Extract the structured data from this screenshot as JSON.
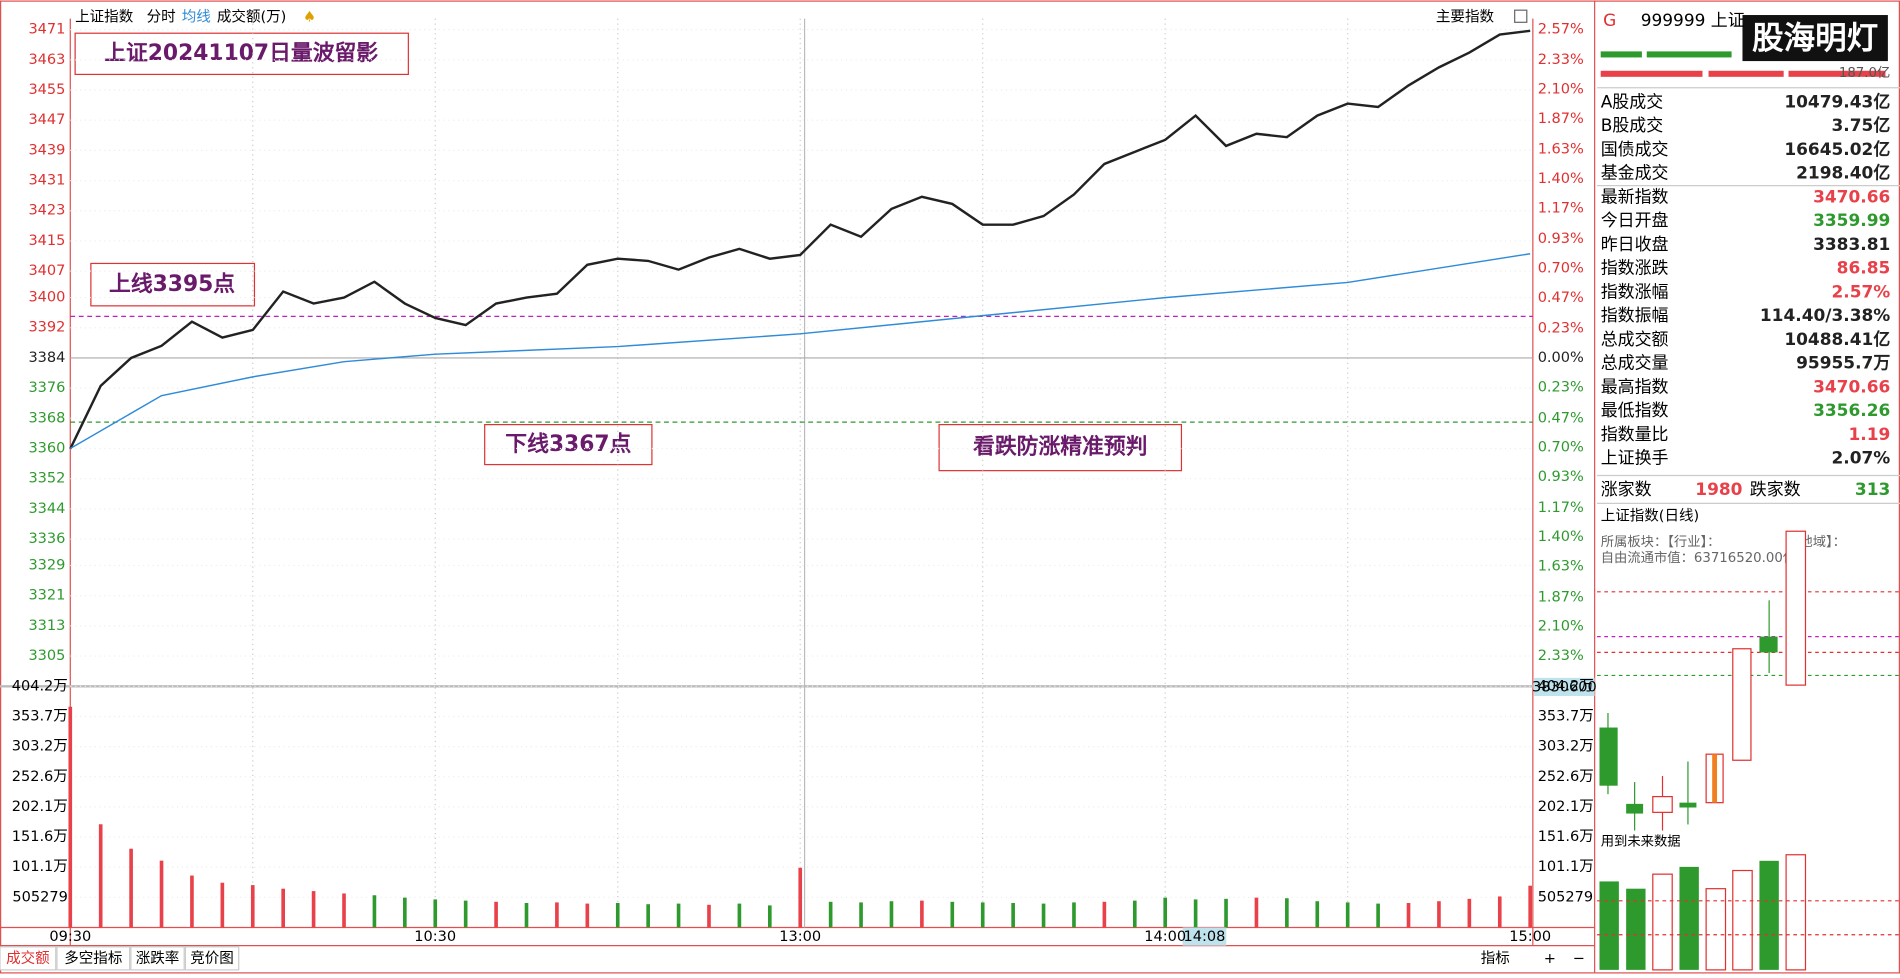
{
  "header": {
    "mode": "分时",
    "volume_label": "成交额(万)",
    "index_menu": "主要指数"
  },
  "cursor": {
    "time": "14:08",
    "volume": "3830600"
  },
  "tabs": [
    "成交额",
    "多空指标",
    "涨跌率",
    "竞价图"
  ],
  "toolbar": [
    "指标",
    "+",
    "−"
  ],
  "watermark": "股海明灯",
  "quote": {
    "flag": "G",
    "code": "999999 上证",
    "amount": "187.0亿",
    "rows": [
      {
        "label": "A股成交",
        "value": "10479.43亿",
        "color": "#222"
      },
      {
        "label": "B股成交",
        "value": "3.75亿",
        "color": "#222"
      },
      {
        "label": "国债成交",
        "value": "16645.02亿",
        "color": "#222"
      },
      {
        "label": "基金成交",
        "value": "2198.40亿",
        "color": "#222"
      },
      {
        "label": "最新指数",
        "value": "3470.66",
        "color": "#e8414a"
      },
      {
        "label": "今日开盘",
        "value": "3359.99",
        "color": "#2e9a2e"
      },
      {
        "label": "昨日收盘",
        "value": "3383.81",
        "color": "#222"
      },
      {
        "label": "指数涨跌",
        "value": "86.85",
        "color": "#e8414a"
      },
      {
        "label": "指数涨幅",
        "value": "2.57%",
        "color": "#e8414a"
      },
      {
        "label": "指数振幅",
        "value": "114.40/3.38%",
        "color": "#222"
      },
      {
        "label": "总成交额",
        "value": "10488.41亿",
        "color": "#222"
      },
      {
        "label": "总成交量",
        "value": "95955.7万",
        "color": "#222"
      },
      {
        "label": "最高指数",
        "value": "3470.66",
        "color": "#e8414a"
      },
      {
        "label": "最低指数",
        "value": "3356.26",
        "color": "#2e9a2e"
      },
      {
        "label": "指数量比",
        "value": "1.19",
        "color": "#e8414a"
      },
      {
        "label": "上证换手",
        "value": "2.07%",
        "color": "#222"
      }
    ],
    "up_label": "涨家数",
    "up": "1980",
    "down_label": "跌家数",
    "down": "313"
  },
  "daily": {
    "title": "上证指数(日线)",
    "sector": "所属板块：【行业】：",
    "region": "【地域】：",
    "float_cap": "自由流通市值：63716520.00亿",
    "note": "用到未来数据"
  },
  "chart_data": [
    {
      "type": "line",
      "ylim": [
        3297.3,
        3473.9
      ],
      "y2lim": [
        -2.557,
        2.655
      ],
      "yticks": [
        3471,
        3463,
        3455,
        3447,
        3439,
        3431,
        3423,
        3415,
        3407,
        3400,
        3392,
        3384,
        3376,
        3368,
        3360,
        3352,
        3344,
        3336,
        3329,
        3321,
        3313,
        3305
      ],
      "y2ticks": [
        {
          "value": 2.57,
          "label": "2.57%"
        },
        {
          "value": 2.33,
          "label": "2.33%"
        },
        {
          "value": 2.1,
          "label": "2.10%"
        },
        {
          "value": 1.87,
          "label": "1.87%"
        },
        {
          "value": 1.63,
          "label": "1.63%"
        },
        {
          "value": 1.4,
          "label": "1.40%"
        },
        {
          "value": 1.17,
          "label": "1.17%"
        },
        {
          "value": 0.93,
          "label": "0.93%"
        },
        {
          "value": 0.7,
          "label": "0.70%"
        },
        {
          "value": 0.47,
          "label": "0.47%"
        },
        {
          "value": 0.23,
          "label": "0.23%"
        },
        {
          "value": 0,
          "label": "0.00%"
        },
        {
          "value": -0.23,
          "label": "0.23%"
        },
        {
          "value": -0.47,
          "label": "0.47%"
        },
        {
          "value": -0.7,
          "label": "0.70%"
        },
        {
          "value": -0.93,
          "label": "0.93%"
        },
        {
          "value": -1.17,
          "label": "1.17%"
        },
        {
          "value": -1.4,
          "label": "1.40%"
        },
        {
          "value": -1.63,
          "label": "1.63%"
        },
        {
          "value": -1.87,
          "label": "1.87%"
        },
        {
          "value": -2.1,
          "label": "2.10%"
        },
        {
          "value": -2.33,
          "label": "2.33%"
        }
      ],
      "xticks": [
        "09:30",
        "10:30",
        "13:00",
        "14:00",
        "15:00"
      ],
      "series": [
        {
          "name": "上证指数",
          "color": "#222",
          "x": [
            "09:30",
            "09:35",
            "09:40",
            "09:45",
            "09:50",
            "09:55",
            "10:00",
            "10:05",
            "10:10",
            "10:15",
            "10:20",
            "10:25",
            "10:30",
            "10:35",
            "10:40",
            "10:45",
            "10:50",
            "10:55",
            "11:00",
            "11:05",
            "11:10",
            "11:15",
            "11:20",
            "11:25",
            "13:00",
            "13:05",
            "13:10",
            "13:15",
            "13:20",
            "13:25",
            "13:30",
            "13:35",
            "13:40",
            "13:45",
            "13:50",
            "13:55",
            "14:00",
            "14:05",
            "14:10",
            "14:15",
            "14:20",
            "14:25",
            "14:30",
            "14:35",
            "14:40",
            "14:45",
            "14:50",
            "14:55",
            "15:00"
          ],
          "values": [
            3359.9,
            3376.6,
            3384.0,
            3387.2,
            3393.6,
            3389.4,
            3391.4,
            3401.6,
            3398.4,
            3400.0,
            3404.2,
            3398.4,
            3394.6,
            3392.7,
            3398.4,
            3400.0,
            3401.0,
            3408.7,
            3410.3,
            3409.7,
            3407.4,
            3410.6,
            3412.9,
            3410.3,
            3411.3,
            3419.3,
            3416.1,
            3423.5,
            3426.7,
            3424.8,
            3419.3,
            3419.3,
            3421.6,
            3427.3,
            3435.4,
            3438.6,
            3441.8,
            3448.2,
            3440.2,
            3443.4,
            3442.5,
            3448.2,
            3451.4,
            3450.5,
            3456.2,
            3461.0,
            3464.9,
            3469.7,
            3470.7
          ]
        },
        {
          "name": "均线",
          "color": "#2f8bd8",
          "x": [
            "09:30",
            "09:45",
            "10:00",
            "10:15",
            "10:30",
            "11:00",
            "13:00",
            "13:30",
            "14:00",
            "14:30",
            "15:00"
          ],
          "values": [
            3360,
            3374,
            3379,
            3383,
            3385,
            3387,
            3390.4,
            3395.2,
            3400,
            3404,
            3411.6
          ]
        }
      ],
      "hlines": [
        {
          "value": 3395,
          "color": "#c020c0"
        },
        {
          "value": 3367,
          "color": "#2e9a2e"
        }
      ],
      "annotations": [
        "上证20241107日量波留影",
        "上线3395点",
        "下线3367点",
        "看跌防涨精准预判"
      ]
    },
    {
      "type": "bar",
      "ylim": [
        0,
        4042000
      ],
      "yticks": [
        {
          "value": 4042000,
          "label": "404.2万"
        },
        {
          "value": 3537000,
          "label": "353.7万"
        },
        {
          "value": 3032000,
          "label": "303.2万"
        },
        {
          "value": 2526000,
          "label": "252.6万"
        },
        {
          "value": 2021000,
          "label": "202.1万"
        },
        {
          "value": 1516000,
          "label": "151.6万"
        },
        {
          "value": 1011000,
          "label": "101.1万"
        },
        505279
      ],
      "x": [
        "09:30",
        "09:35",
        "09:40",
        "09:45",
        "09:50",
        "09:55",
        "10:00",
        "10:05",
        "10:10",
        "10:15",
        "10:20",
        "10:25",
        "10:30",
        "10:35",
        "10:40",
        "10:45",
        "10:50",
        "10:55",
        "11:00",
        "11:05",
        "11:10",
        "11:15",
        "11:20",
        "11:25",
        "13:00",
        "13:05",
        "13:10",
        "13:15",
        "13:20",
        "13:25",
        "13:30",
        "13:35",
        "13:40",
        "13:45",
        "13:50",
        "13:55",
        "14:00",
        "14:05",
        "14:10",
        "14:15",
        "14:20",
        "14:25",
        "14:30",
        "14:35",
        "14:40",
        "14:45",
        "14:50",
        "14:55",
        "15:00"
      ],
      "values": [
        3700000,
        1730000,
        1320000,
        1120000,
        870000,
        750000,
        710000,
        650000,
        610000,
        570000,
        540000,
        500000,
        470000,
        450000,
        430000,
        410000,
        420000,
        400000,
        410000,
        390000,
        400000,
        380000,
        400000,
        370000,
        1000000,
        430000,
        420000,
        440000,
        450000,
        430000,
        420000,
        410000,
        400000,
        420000,
        430000,
        450000,
        500000,
        470000,
        480000,
        500000,
        490000,
        440000,
        420000,
        400000,
        410000,
        440000,
        480000,
        520000,
        700000
      ],
      "colors": [
        "#e8414a",
        "#e8414a",
        "#e8414a",
        "#e8414a",
        "#e8414a",
        "#e8414a",
        "#e8414a",
        "#e8414a",
        "#e8414a",
        "#e8414a",
        "#2e9a2e",
        "#2e9a2e",
        "#2e9a2e",
        "#2e9a2e",
        "#e8414a",
        "#2e9a2e",
        "#e8414a",
        "#e8414a",
        "#2e9a2e",
        "#2e9a2e",
        "#2e9a2e",
        "#e8414a",
        "#2e9a2e",
        "#2e9a2e",
        "#e8414a",
        "#2e9a2e",
        "#2e9a2e",
        "#2e9a2e",
        "#e8414a",
        "#2e9a2e",
        "#2e9a2e",
        "#2e9a2e",
        "#2e9a2e",
        "#2e9a2e",
        "#e8414a",
        "#2e9a2e",
        "#2e9a2e",
        "#2e9a2e",
        "#2e9a2e",
        "#e8414a",
        "#2e9a2e",
        "#2e9a2e",
        "#2e9a2e",
        "#2e9a2e",
        "#e8414a",
        "#e8414a",
        "#e8414a",
        "#e8414a",
        "#e8414a"
      ]
    }
  ]
}
